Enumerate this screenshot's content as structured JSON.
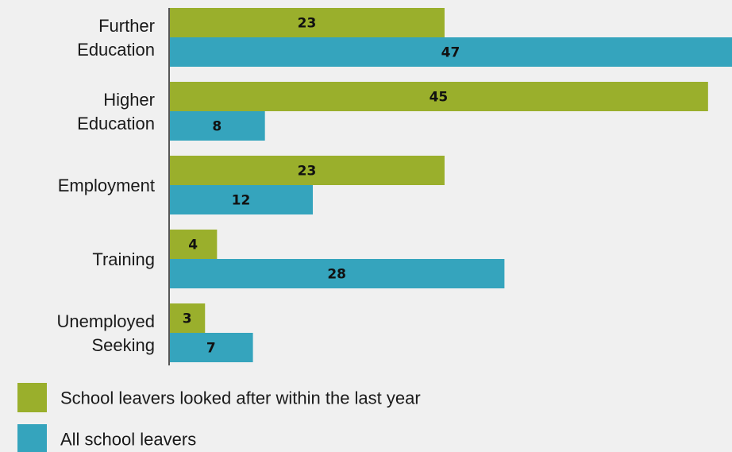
{
  "chart_data": {
    "type": "bar",
    "orientation": "horizontal",
    "categories": [
      [
        "Further",
        "Education"
      ],
      [
        "Higher",
        "Education"
      ],
      [
        "Employment"
      ],
      [
        "Training"
      ],
      [
        "Unemployed",
        "Seeking"
      ]
    ],
    "series": [
      {
        "name": "School leavers looked after within the last year",
        "values": [
          23,
          45,
          23,
          4,
          3
        ],
        "color": "#9aaf2c"
      },
      {
        "name": "All school leavers",
        "values": [
          47,
          8,
          12,
          28,
          7
        ],
        "color": "#35a4bd"
      }
    ],
    "xlim": [
      0,
      47
    ],
    "data_labels": true,
    "grid": false,
    "legend_position": "bottom-left",
    "axis_color": "#555555"
  }
}
